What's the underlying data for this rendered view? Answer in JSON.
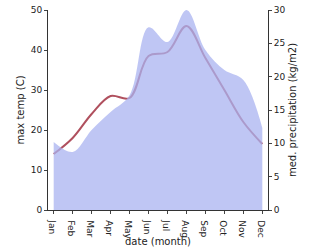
{
  "chart_data": {
    "type": "line",
    "x_label": "date (month)",
    "y_label": "max temp (C)",
    "y2_label": "med. precipitation (kg/m2)",
    "categories": [
      "Jan",
      "Feb",
      "Mar",
      "Apr",
      "May",
      "Jun",
      "Jul",
      "Aug",
      "Sep",
      "Oct",
      "Nov",
      "Dec"
    ],
    "ylim": [
      0,
      50
    ],
    "yticks": [
      0,
      10,
      20,
      30,
      40,
      50
    ],
    "y2lim": [
      0,
      30
    ],
    "y2ticks": [
      0,
      5,
      10,
      15,
      20,
      25,
      30
    ],
    "grid": false,
    "series": [
      {
        "name": "med. precipitation",
        "type": "area",
        "axis": "y2",
        "color": "#a9b3f0",
        "values": [
          10.2,
          8.7,
          12,
          14.7,
          17.2,
          27.4,
          25.2,
          30,
          24,
          21,
          19.5,
          12.3
        ]
      },
      {
        "name": "max temp",
        "type": "line",
        "axis": "y",
        "color": "#b0505e",
        "values": [
          14,
          18,
          24,
          28.5,
          28,
          38.5,
          39.5,
          46,
          38,
          30,
          22,
          16.5
        ]
      }
    ]
  }
}
